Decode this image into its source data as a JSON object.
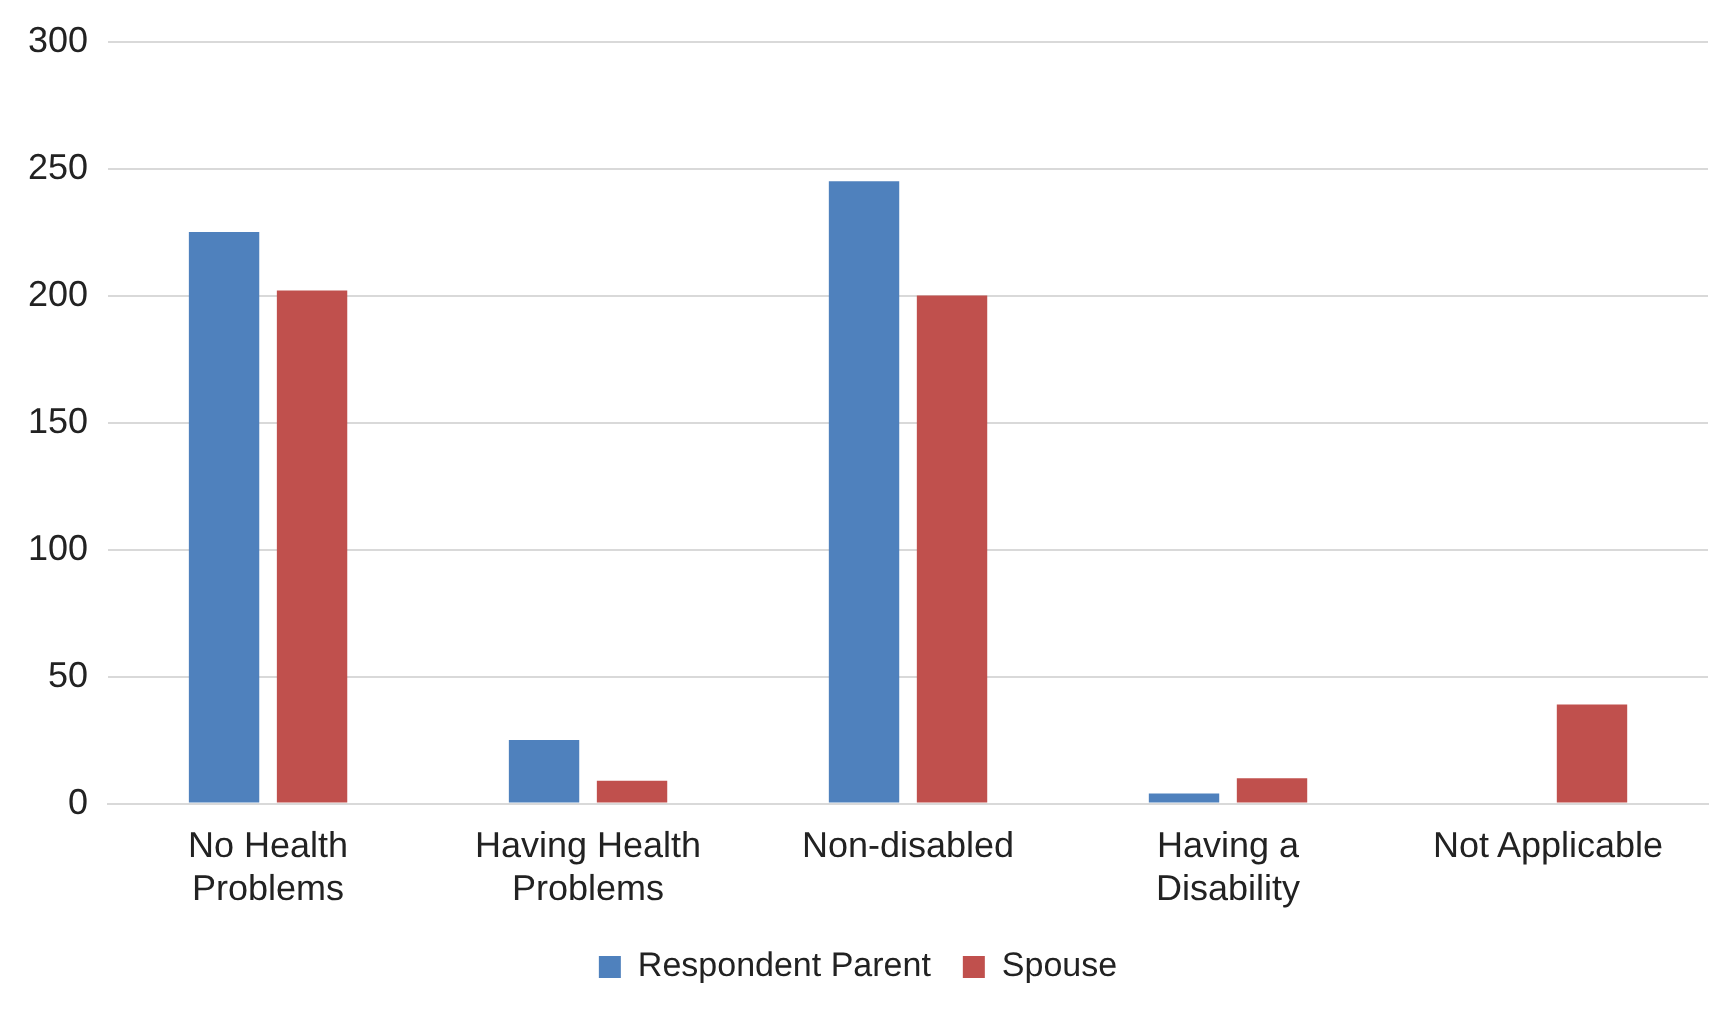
{
  "chart_data": {
    "type": "bar",
    "categories": [
      [
        "No Health",
        "Problems"
      ],
      [
        "Having Health",
        "Problems"
      ],
      "Non-disabled",
      [
        "Having a",
        "Disability"
      ],
      "Not Applicable"
    ],
    "series": [
      {
        "name": "Respondent Parent",
        "color": "#4f81bd",
        "values": [
          225,
          25,
          245,
          4,
          0
        ]
      },
      {
        "name": "Spouse",
        "color": "#c0504d",
        "values": [
          202,
          9,
          200,
          10,
          39
        ]
      }
    ],
    "ylim": [
      0,
      300
    ],
    "yticks": [
      0,
      50,
      100,
      150,
      200,
      250,
      300
    ],
    "grid": "y",
    "legend": "bottom"
  }
}
